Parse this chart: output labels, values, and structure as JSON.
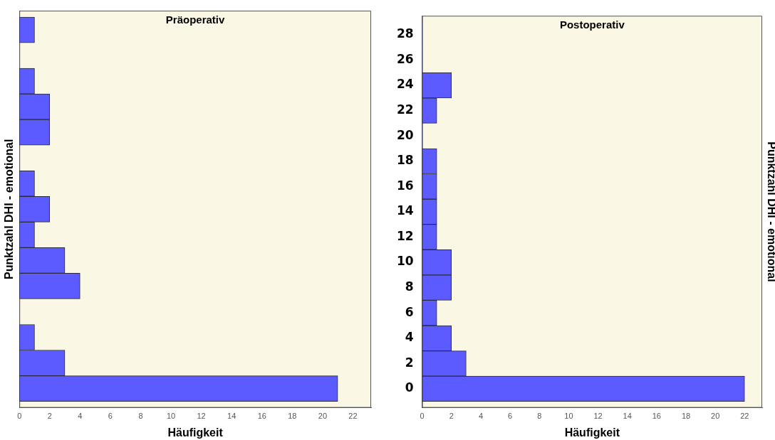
{
  "chart_data": [
    {
      "type": "histogram",
      "orientation": "horizontal",
      "title": "Präoperativ",
      "xlabel": "Häufigkeit",
      "ylabel": "Punktzahl DHI - emotional",
      "color": "#5b5bff",
      "bins": [
        -1,
        1,
        3,
        5,
        7,
        9,
        11,
        13,
        15,
        17,
        19,
        21,
        23,
        25,
        27,
        29
      ],
      "values": [
        21,
        3,
        1,
        0,
        4,
        3,
        1,
        2,
        1,
        0,
        2,
        2,
        1,
        0,
        1
      ],
      "xlim": [
        0,
        23.2
      ],
      "xticks": [
        0,
        2,
        4,
        6,
        8,
        10,
        12,
        14,
        16,
        18,
        20,
        22
      ],
      "ylim": [
        -1.5,
        29.5
      ],
      "yticks": [
        0,
        2,
        4,
        6,
        8,
        10,
        12,
        14,
        16,
        18,
        20,
        22,
        24,
        26,
        28
      ],
      "tick_labels": "x"
    },
    {
      "type": "histogram",
      "orientation": "horizontal",
      "title": "Postoperativ",
      "xlabel": "Häufigkeit",
      "ylabel": "Punktzahl DHI - emotional",
      "color": "#5b5bff",
      "bins": [
        -1,
        1,
        3,
        5,
        7,
        9,
        11,
        13,
        15,
        17,
        19,
        21,
        23,
        25,
        27,
        29
      ],
      "values": [
        22,
        3,
        2,
        1,
        2,
        2,
        1,
        1,
        1,
        1,
        0,
        1,
        2,
        0,
        0
      ],
      "xlim": [
        0,
        23.2
      ],
      "xticks": [
        0,
        2,
        4,
        6,
        8,
        10,
        12,
        14,
        16,
        18,
        20,
        22
      ],
      "ylim": [
        -1.5,
        29.5
      ],
      "yticks": [
        0,
        2,
        4,
        6,
        8,
        10,
        12,
        14,
        16,
        18,
        20,
        22,
        24,
        26,
        28
      ]
    }
  ]
}
